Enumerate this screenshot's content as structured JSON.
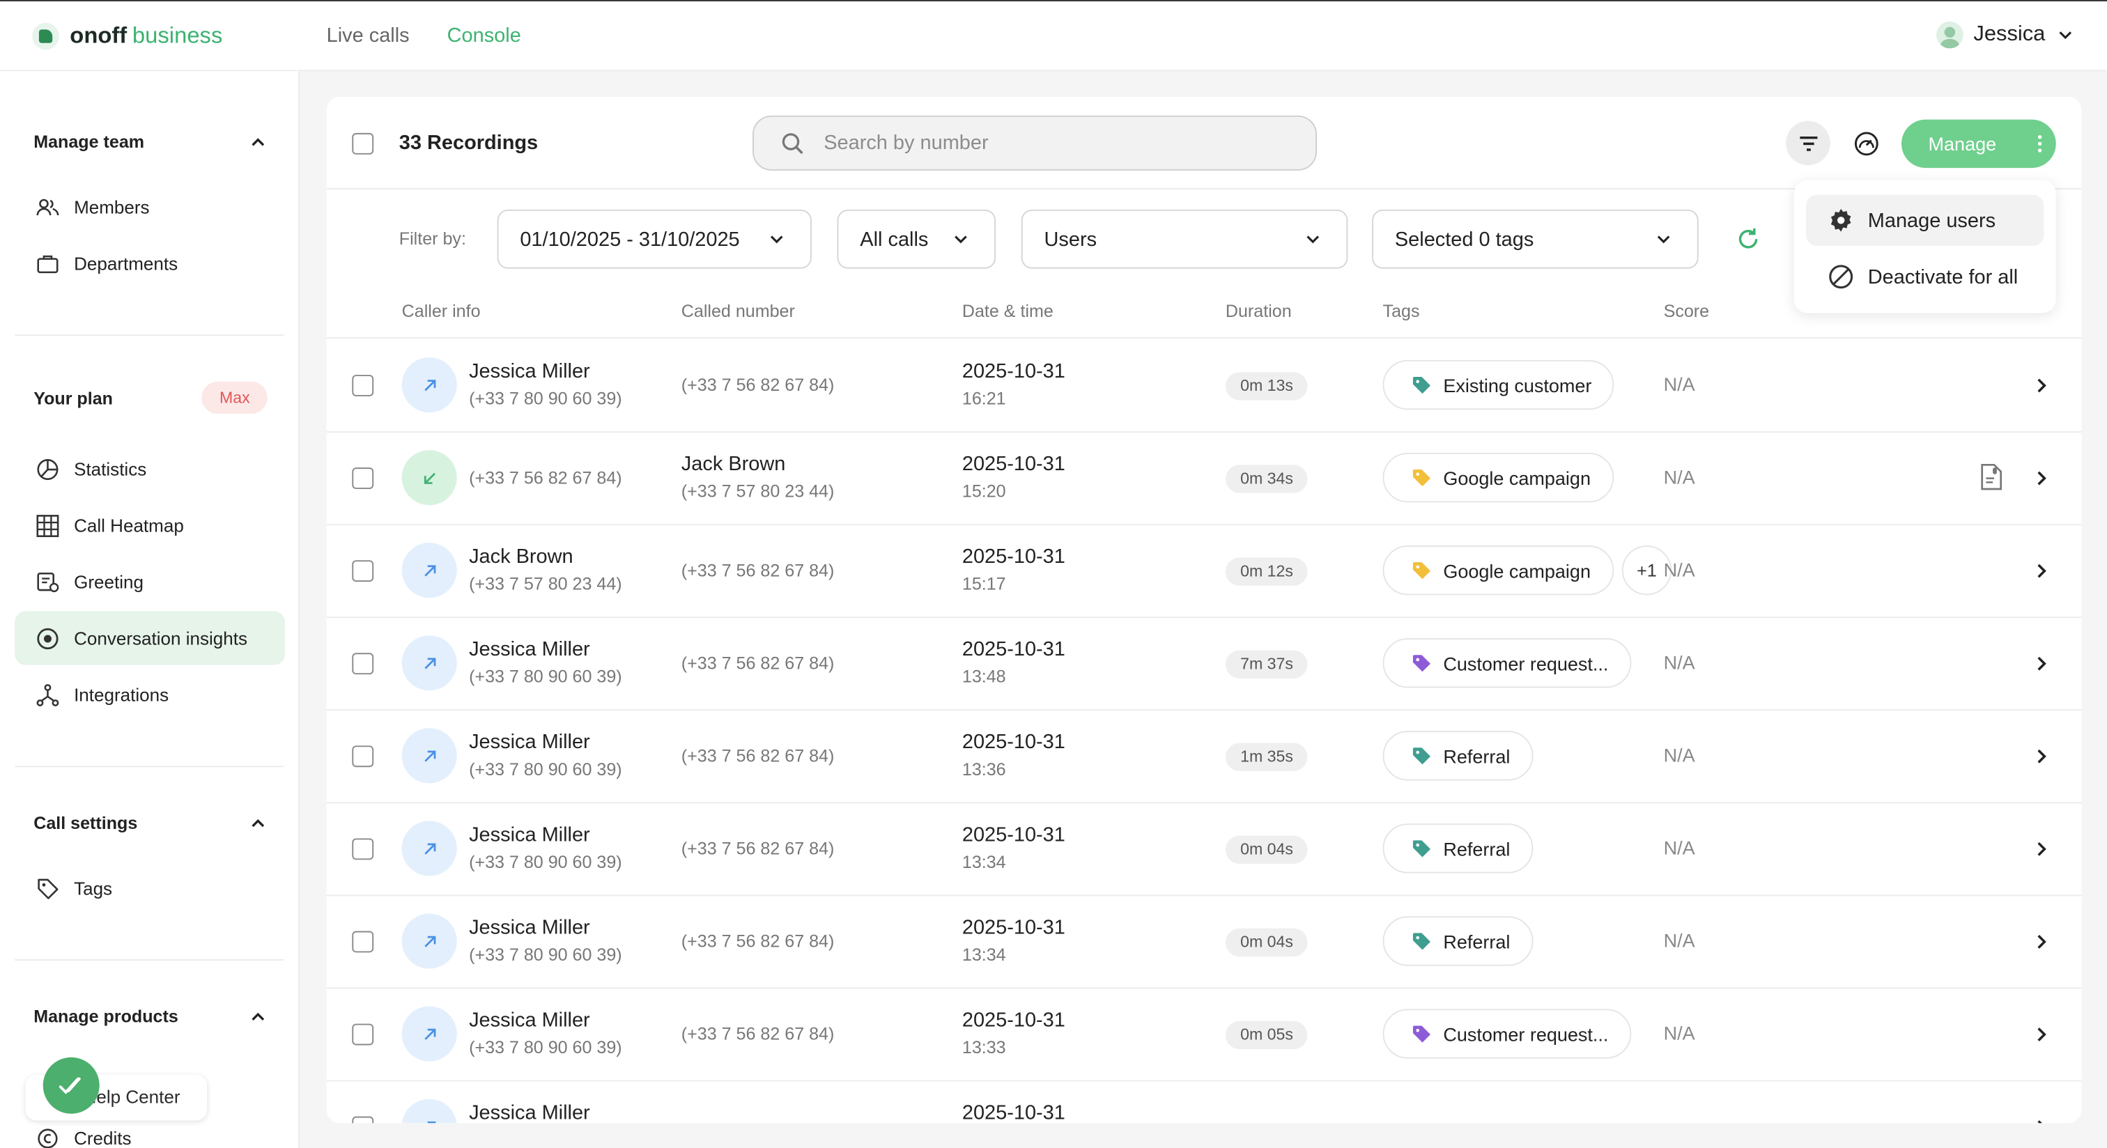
{
  "app": {
    "brand": "onoff",
    "brand_sub": "business"
  },
  "topnav": {
    "live_calls": "Live calls",
    "console": "Console"
  },
  "user": {
    "name": "Jessica"
  },
  "sidebar": {
    "manage_team": "Manage team",
    "members": "Members",
    "departments": "Departments",
    "your_plan": "Your plan",
    "plan_badge": "Max",
    "statistics": "Statistics",
    "call_heatmap": "Call Heatmap",
    "greeting": "Greeting",
    "conversation_insights": "Conversation insights",
    "integrations": "Integrations",
    "call_settings": "Call settings",
    "tags": "Tags",
    "manage_products": "Manage products",
    "help_center": "Help Center",
    "credits": "Credits"
  },
  "header": {
    "recordings_count": "33 Recordings",
    "search_placeholder": "Search by number",
    "manage_label": "Manage"
  },
  "filters": {
    "label": "Filter by:",
    "date_range": "01/10/2025 - 31/10/2025",
    "call_type": "All calls",
    "users": "Users",
    "tags": "Selected 0 tags"
  },
  "columns": {
    "caller_info": "Caller info",
    "called_number": "Called number",
    "date_time": "Date & time",
    "duration": "Duration",
    "tags": "Tags",
    "score": "Score"
  },
  "rows": [
    {
      "direction": "outgoing",
      "caller_name": "Jessica Miller",
      "caller_number": "(+33 7 80 90 60 39)",
      "called_name": "",
      "called_number": "(+33 7 56 82 67 84)",
      "date": "2025-10-31",
      "time": "16:21",
      "duration": "0m 13s",
      "tag": "Existing customer",
      "tag_color": "#3f9e8f",
      "extra": "",
      "score": "N/A",
      "transcript": false
    },
    {
      "direction": "incoming",
      "caller_name": "",
      "caller_number": "(+33 7 56 82 67 84)",
      "called_name": "Jack Brown",
      "called_number": "(+33 7 57 80 23 44)",
      "date": "2025-10-31",
      "time": "15:20",
      "duration": "0m 34s",
      "tag": "Google campaign",
      "tag_color": "#f2bf3a",
      "extra": "",
      "score": "N/A",
      "transcript": true
    },
    {
      "direction": "outgoing",
      "caller_name": "Jack Brown",
      "caller_number": "(+33 7 57 80 23 44)",
      "called_name": "",
      "called_number": "(+33 7 56 82 67 84)",
      "date": "2025-10-31",
      "time": "15:17",
      "duration": "0m 12s",
      "tag": "Google campaign",
      "tag_color": "#f2bf3a",
      "extra": "+1",
      "score": "N/A",
      "transcript": false
    },
    {
      "direction": "outgoing",
      "caller_name": "Jessica Miller",
      "caller_number": "(+33 7 80 90 60 39)",
      "called_name": "",
      "called_number": "(+33 7 56 82 67 84)",
      "date": "2025-10-31",
      "time": "13:48",
      "duration": "7m 37s",
      "tag": "Customer request...",
      "tag_color": "#8e5bd8",
      "extra": "",
      "score": "N/A",
      "transcript": false
    },
    {
      "direction": "outgoing",
      "caller_name": "Jessica Miller",
      "caller_number": "(+33 7 80 90 60 39)",
      "called_name": "",
      "called_number": "(+33 7 56 82 67 84)",
      "date": "2025-10-31",
      "time": "13:36",
      "duration": "1m 35s",
      "tag": "Referral",
      "tag_color": "#3f9e8f",
      "extra": "",
      "score": "N/A",
      "transcript": false
    },
    {
      "direction": "outgoing",
      "caller_name": "Jessica Miller",
      "caller_number": "(+33 7 80 90 60 39)",
      "called_name": "",
      "called_number": "(+33 7 56 82 67 84)",
      "date": "2025-10-31",
      "time": "13:34",
      "duration": "0m 04s",
      "tag": "Referral",
      "tag_color": "#3f9e8f",
      "extra": "",
      "score": "N/A",
      "transcript": false
    },
    {
      "direction": "outgoing",
      "caller_name": "Jessica Miller",
      "caller_number": "(+33 7 80 90 60 39)",
      "called_name": "",
      "called_number": "(+33 7 56 82 67 84)",
      "date": "2025-10-31",
      "time": "13:34",
      "duration": "0m 04s",
      "tag": "Referral",
      "tag_color": "#3f9e8f",
      "extra": "",
      "score": "N/A",
      "transcript": false
    },
    {
      "direction": "outgoing",
      "caller_name": "Jessica Miller",
      "caller_number": "(+33 7 80 90 60 39)",
      "called_name": "",
      "called_number": "(+33 7 56 82 67 84)",
      "date": "2025-10-31",
      "time": "13:33",
      "duration": "0m 05s",
      "tag": "Customer request...",
      "tag_color": "#8e5bd8",
      "extra": "",
      "score": "N/A",
      "transcript": false
    },
    {
      "direction": "outgoing",
      "caller_name": "Jessica Miller",
      "caller_number": "",
      "called_name": "",
      "called_number": "",
      "date": "2025-10-31",
      "time": "",
      "duration": "",
      "tag": "",
      "tag_color": "#f2bf3a",
      "extra": "",
      "score": "",
      "transcript": false
    }
  ],
  "dropdown_menu": {
    "manage_users": "Manage users",
    "deactivate_all": "Deactivate for all"
  },
  "colors": {
    "accent": "#3cb371",
    "manage_button": "#6fcf8d",
    "outgoing_icon": "#4a90e2",
    "incoming_icon": "#3cb371"
  }
}
